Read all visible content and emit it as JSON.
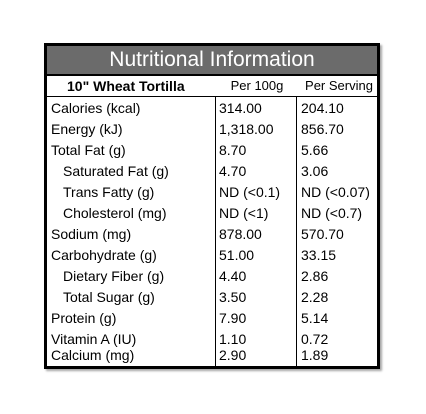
{
  "title": "Nutritional Information",
  "product": "10\" Wheat Tortilla",
  "columns": {
    "per100": "Per 100g",
    "perServing": "Per Serving"
  },
  "rows": [
    {
      "label": "Calories (kcal)",
      "per100": "314.00",
      "perServing": "204.10",
      "indent": false
    },
    {
      "label": "Energy (kJ)",
      "per100": "1,318.00",
      "perServing": "856.70",
      "indent": false
    },
    {
      "label": "Total Fat (g)",
      "per100": "8.70",
      "perServing": "5.66",
      "indent": false
    },
    {
      "label": "Saturated Fat (g)",
      "per100": "4.70",
      "perServing": "3.06",
      "indent": true
    },
    {
      "label": "Trans Fatty (g)",
      "per100": "ND (<0.1)",
      "perServing": "ND (<0.07)",
      "indent": true
    },
    {
      "label": "Cholesterol (mg)",
      "per100": "ND (<1)",
      "perServing": "ND (<0.7)",
      "indent": true
    },
    {
      "label": "Sodium (mg)",
      "per100": "878.00",
      "perServing": "570.70",
      "indent": false
    },
    {
      "label": "Carbohydrate (g)",
      "per100": "51.00",
      "perServing": "33.15",
      "indent": false
    },
    {
      "label": "Dietary Fiber (g)",
      "per100": "4.40",
      "perServing": "2.86",
      "indent": true
    },
    {
      "label": "Total Sugar  (g)",
      "per100": "3.50",
      "perServing": "2.28",
      "indent": true
    },
    {
      "label": "Protein  (g)",
      "per100": "7.90",
      "perServing": "5.14",
      "indent": false
    },
    {
      "label": "Vitamin A (IU)",
      "per100": "1.10",
      "perServing": "0.72",
      "indent": false
    },
    {
      "label": "Calcium (mg)",
      "per100": "2.90",
      "perServing": "1.89",
      "indent": false
    }
  ],
  "colors": {
    "title_bg": "#6b6b6b",
    "title_text": "#ffffff",
    "border": "#000000"
  }
}
